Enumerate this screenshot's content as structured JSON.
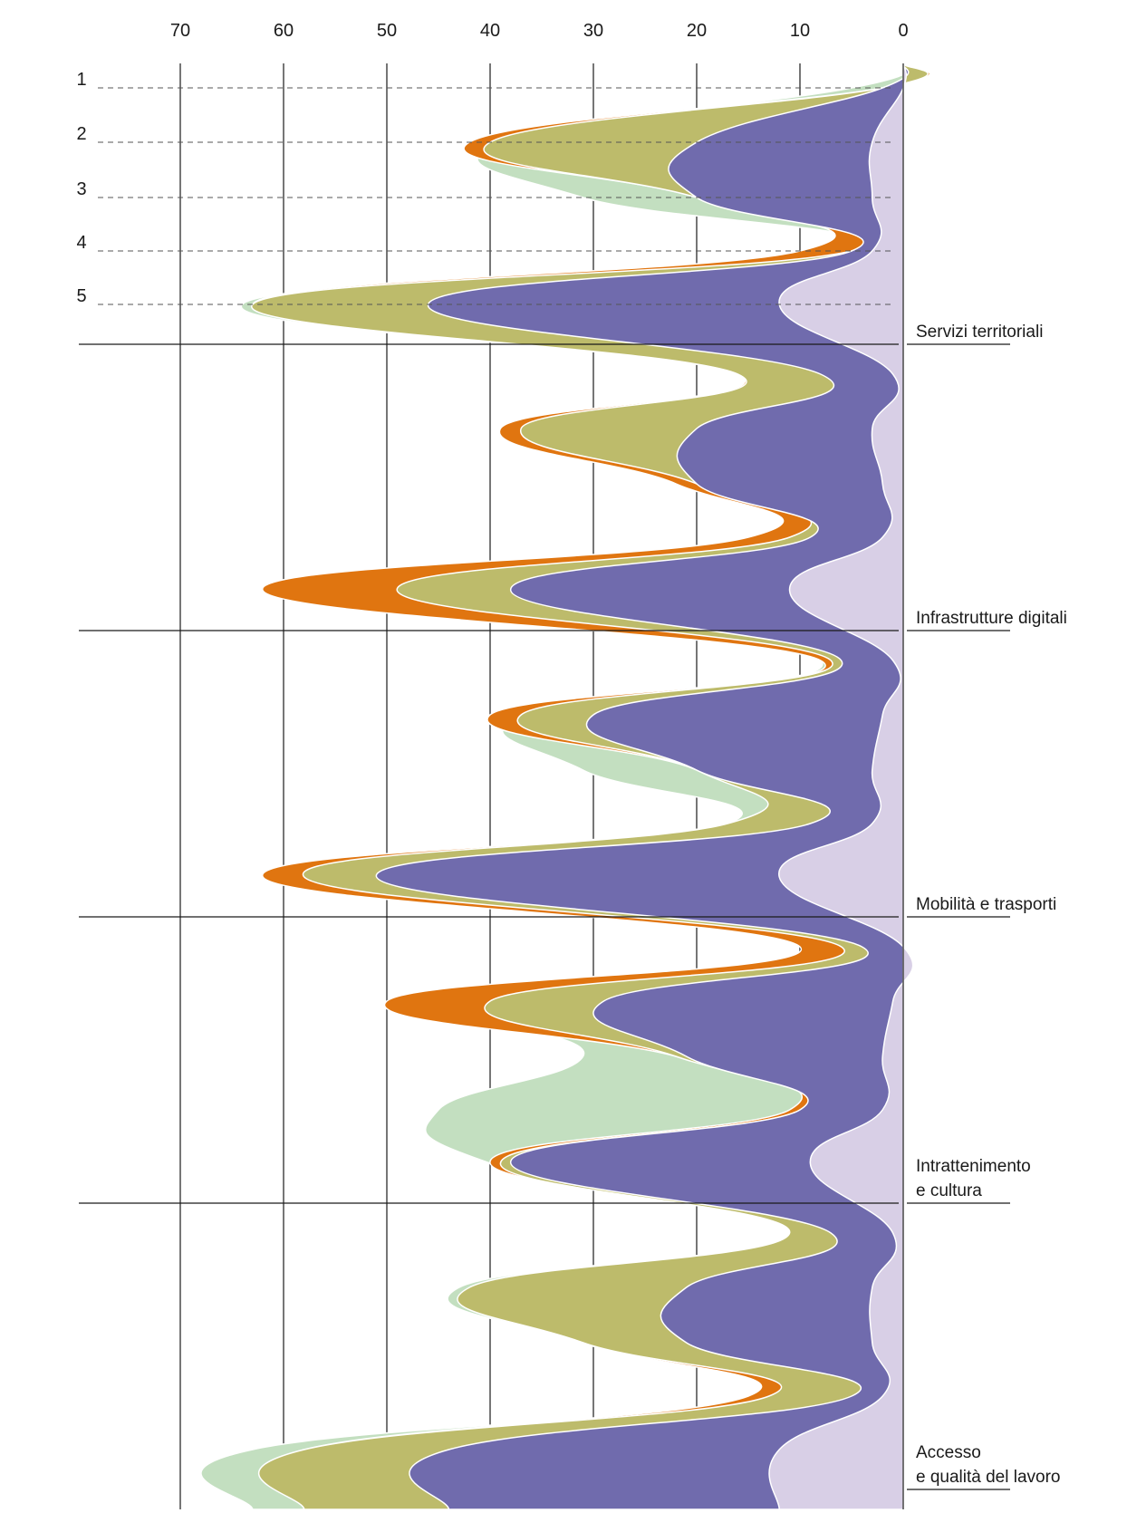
{
  "chart_data": {
    "type": "area",
    "orientation": "horizontal",
    "x_axis": {
      "ticks": [
        70,
        60,
        50,
        40,
        30,
        20,
        10,
        0
      ],
      "range": [
        0,
        70
      ],
      "direction": "right-to-left",
      "position": "top",
      "grid": true
    },
    "row_ticks": [
      "1",
      "2",
      "3",
      "4",
      "5"
    ],
    "categories": [
      "Servizi territoriali",
      "Infrastrutture digitali",
      "Mobilità e trasporti",
      "Intrattenimento\ne cultura",
      "Accesso\ne qualità del lavoro"
    ],
    "series": [
      {
        "color": "#d8cfe6",
        "values": [
          [
            0,
            3,
            3,
            3,
            12
          ],
          [
            1,
            3,
            2,
            2,
            11
          ],
          [
            1,
            2,
            3,
            3,
            12
          ],
          [
            0,
            1,
            2,
            2,
            9
          ],
          [
            1,
            3,
            3,
            2,
            12
          ]
        ]
      },
      {
        "color": "#706bad",
        "values": [
          [
            2,
            20,
            20,
            5,
            46
          ],
          [
            8,
            20,
            20,
            9,
            38
          ],
          [
            6,
            30,
            20,
            9,
            51
          ],
          [
            4,
            29,
            21,
            10,
            38
          ],
          [
            7,
            21,
            21,
            5,
            44
          ]
        ]
      },
      {
        "color": "#bdbb6b",
        "values": [
          [
            2,
            40,
            20,
            5,
            63
          ],
          [
            16,
            37,
            20,
            11,
            49
          ],
          [
            7,
            37,
            20,
            17,
            58
          ],
          [
            6,
            40,
            22,
            10,
            39
          ],
          [
            11,
            42,
            31,
            13,
            58
          ]
        ]
      },
      {
        "color": "#e07510",
        "values": [
          [
            2,
            42,
            20,
            10,
            63
          ],
          [
            16,
            39,
            22,
            15,
            62
          ],
          [
            8,
            40,
            20,
            17,
            62
          ],
          [
            10,
            50,
            22,
            11,
            40
          ],
          [
            8,
            41,
            31,
            15,
            58
          ]
        ]
      },
      {
        "color": "#c3dfc0",
        "values": [
          [
            5,
            39,
            31,
            5,
            64
          ],
          [
            16,
            37,
            21,
            7,
            49
          ],
          [
            8,
            37,
            31,
            17,
            59
          ],
          [
            6,
            39,
            31,
            45,
            40
          ],
          [
            11,
            43,
            31,
            12,
            63
          ]
        ]
      }
    ]
  }
}
